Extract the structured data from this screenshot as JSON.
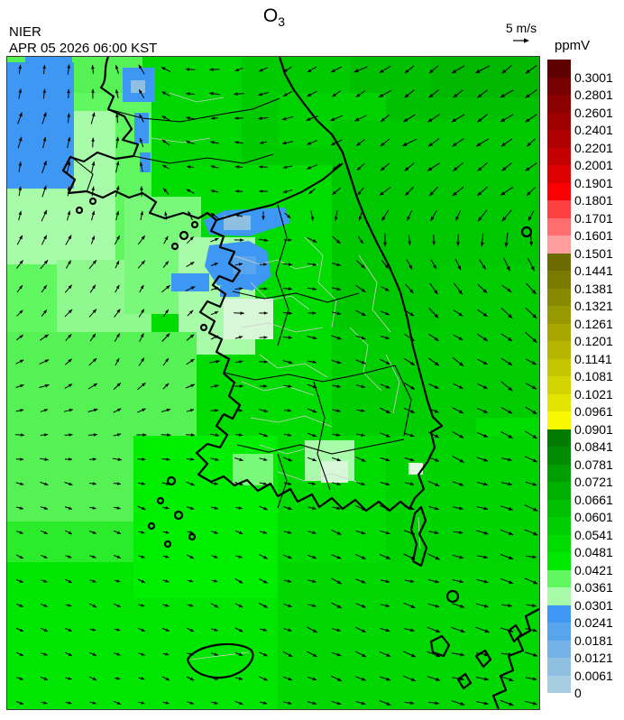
{
  "header": {
    "agency": "NIER",
    "datetime": "APR 05 2026 06:00 KST",
    "title_main": "O",
    "title_sub": "3",
    "wind_scale_label": "5 m/s",
    "unit_label": "ppmV"
  },
  "colorbar": {
    "ticks": [
      "0.3001",
      "0.2801",
      "0.2601",
      "0.2401",
      "0.2201",
      "0.2001",
      "0.1901",
      "0.1801",
      "0.1701",
      "0.1601",
      "0.1501",
      "0.1441",
      "0.1381",
      "0.1321",
      "0.1261",
      "0.1201",
      "0.1141",
      "0.1081",
      "0.1021",
      "0.0961",
      "0.0901",
      "0.0841",
      "0.0781",
      "0.0721",
      "0.0661",
      "0.0601",
      "0.0541",
      "0.0481",
      "0.0421",
      "0.0361",
      "0.0301",
      "0.0241",
      "0.0181",
      "0.0121",
      "0.0061",
      "0"
    ],
    "colors": [
      "#5E0000",
      "#770000",
      "#8B0000",
      "#9E0000",
      "#B00000",
      "#C40000",
      "#DC0000",
      "#FA0000",
      "#FF4040",
      "#FF6E6E",
      "#FF9C9C",
      "#6B6B00",
      "#7A7A00",
      "#898900",
      "#989800",
      "#A7A700",
      "#B6B600",
      "#C5C500",
      "#D4D400",
      "#E3E300",
      "#F8F800",
      "#007A00",
      "#008C00",
      "#009E00",
      "#00B000",
      "#00C000",
      "#00CE00",
      "#00DC00",
      "#00EA00",
      "#60F760",
      "#A8FBA8",
      "#3E97F2",
      "#58A5EE",
      "#74B2E8",
      "#8FC0E2",
      "#A6CDE2"
    ]
  },
  "map": {
    "base_color": "#00DC00",
    "field_patches": [
      {
        "r": [
          250,
          0,
          340,
          120
        ],
        "c": "#00CA00"
      },
      {
        "r": [
          380,
          0,
          210,
          70
        ],
        "c": "#00C000"
      },
      {
        "r": [
          470,
          0,
          120,
          45
        ],
        "c": "#00B800"
      },
      {
        "r": [
          300,
          40,
          120,
          60
        ],
        "c": "#00D200"
      },
      {
        "r": [
          360,
          70,
          230,
          230
        ],
        "c": "#00C800"
      },
      {
        "r": [
          480,
          230,
          110,
          170
        ],
        "c": "#00CC00"
      },
      {
        "r": [
          360,
          300,
          160,
          120
        ],
        "c": "#00CE00"
      },
      {
        "r": [
          420,
          420,
          170,
          140
        ],
        "c": "#00D400"
      },
      {
        "r": [
          300,
          560,
          290,
          163
        ],
        "c": "#00D800"
      },
      {
        "r": [
          150,
          0,
          110,
          120
        ],
        "c": "#00D600"
      },
      {
        "r": [
          0,
          0,
          150,
          60
        ],
        "c": "#55F155"
      },
      {
        "r": [
          0,
          40,
          160,
          270
        ],
        "c": "#60F760"
      },
      {
        "r": [
          0,
          60,
          120,
          170
        ],
        "c": "#A8FBA8"
      },
      {
        "r": [
          55,
          225,
          105,
          85
        ],
        "c": "#8FF98F"
      },
      {
        "r": [
          130,
          155,
          85,
          130
        ],
        "c": "#7AF87A"
      },
      {
        "r": [
          190,
          200,
          85,
          130
        ],
        "c": "#A8FBA8"
      },
      {
        "r": [
          240,
          268,
          55,
          45
        ],
        "c": "#D8F6D8"
      },
      {
        "r": [
          0,
          305,
          210,
          210
        ],
        "c": "#55F155"
      },
      {
        "r": [
          0,
          515,
          140,
          90
        ],
        "c": "#2BEC2B"
      },
      {
        "r": [
          0,
          560,
          300,
          163
        ],
        "c": "#00E600"
      },
      {
        "r": [
          140,
          420,
          160,
          180
        ],
        "c": "#00EE00"
      },
      {
        "r": [
          330,
          425,
          55,
          45
        ],
        "c": "#A8FBA8"
      },
      {
        "r": [
          348,
          448,
          30,
          24
        ],
        "c": "#D8F6D8"
      },
      {
        "r": [
          250,
          440,
          45,
          35
        ],
        "c": "#7AF87A"
      },
      {
        "r": [
          445,
          450,
          16,
          13
        ],
        "c": "#E2F9E2"
      },
      {
        "r": [
          0,
          6,
          74,
          140
        ],
        "c": "#3E97F2"
      },
      {
        "r": [
          20,
          0,
          52,
          40
        ],
        "c": "#3E97F2"
      },
      {
        "r": [
          128,
          12,
          36,
          38
        ],
        "c": "#3E97F2"
      },
      {
        "r": [
          137,
          26,
          16,
          14
        ],
        "c": "#8FC0E2"
      },
      {
        "r": [
          141,
          62,
          16,
          34
        ],
        "c": "#3E97F2"
      },
      {
        "r": [
          147,
          106,
          12,
          22
        ],
        "c": "#3E97F2"
      },
      {
        "p": "218,181 242,170 308,167 314,184 268,199 224,197",
        "c": "#3E97F2"
      },
      {
        "r": [
          240,
          176,
          30,
          16
        ],
        "c": "#8FC0E2"
      },
      {
        "p": "224,209 268,204 288,215 293,243 272,259 233,253 219,232",
        "c": "#3E97F2"
      },
      {
        "r": [
          250,
          221,
          26,
          20
        ],
        "c": "#58A5EE"
      },
      {
        "r": [
          182,
          240,
          42,
          20
        ],
        "c": "#3E97F2"
      },
      {
        "r": [
          236,
          254,
          22,
          12
        ],
        "c": "#3E97F2"
      }
    ],
    "wind_control_points": [
      [
        55,
        120,
        -78,
        13
      ],
      [
        150,
        320,
        -70,
        11
      ],
      [
        60,
        560,
        25,
        7
      ],
      [
        170,
        650,
        20,
        7
      ],
      [
        290,
        240,
        3,
        9
      ],
      [
        300,
        430,
        15,
        8
      ],
      [
        250,
        120,
        188,
        6
      ],
      [
        350,
        55,
        152,
        13
      ],
      [
        460,
        55,
        150,
        17
      ],
      [
        565,
        110,
        150,
        15
      ],
      [
        565,
        300,
        35,
        16
      ],
      [
        570,
        520,
        15,
        14
      ],
      [
        500,
        660,
        8,
        15
      ],
      [
        400,
        630,
        25,
        12
      ],
      [
        210,
        560,
        25,
        7
      ],
      [
        80,
        690,
        15,
        7
      ]
    ],
    "wind_grid_step": 27
  }
}
